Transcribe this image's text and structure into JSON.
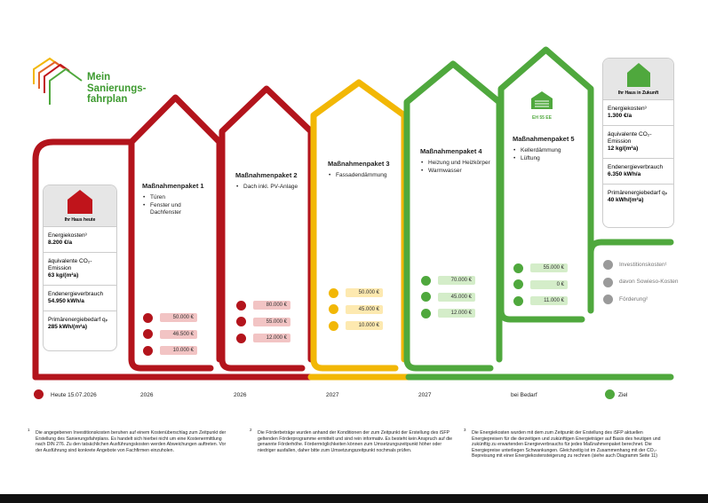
{
  "logo": {
    "lines": [
      "Mein",
      "Sanierungs-",
      "fahrplan"
    ]
  },
  "current_house": {
    "title": "Ihr Haus heute",
    "rows": [
      {
        "label": "Energiekosten³",
        "value": "8.200 €/a"
      },
      {
        "label": "äquivalente CO₂-Emission",
        "value": "63 kg/(m²a)"
      },
      {
        "label": "Endenergieverbrauch",
        "value": "54.950 kWh/a"
      },
      {
        "label": "Primärenergiebedarf qₚ",
        "value": "285 kWh/(m²a)"
      }
    ]
  },
  "future_house": {
    "title": "Ihr Haus in Zukunft",
    "rows": [
      {
        "label": "Energiekosten³",
        "value": "1.300 €/a"
      },
      {
        "label": "äquivalente CO₂-Emission",
        "value": "12 kg/(m²a)"
      },
      {
        "label": "Endenergieverbrauch",
        "value": "6.350 kWh/a"
      },
      {
        "label": "Primärenergiebedarf qₚ",
        "value": "40 kWh/(m²a)"
      }
    ]
  },
  "packages": [
    {
      "title": "Maßnahmenpaket 1",
      "items": [
        "Türen",
        "Fenster und Dachfenster"
      ],
      "costs": [
        "50.000 €",
        "46.500 €",
        "10.000 €"
      ],
      "year": "2026"
    },
    {
      "title": "Maßnahmenpaket 2",
      "items": [
        "Dach inkl. PV-Anlage"
      ],
      "costs": [
        "80.000 €",
        "55.000 €",
        "12.000 €"
      ],
      "year": "2026"
    },
    {
      "title": "Maßnahmenpaket 3",
      "items": [
        "Fassadendämmung"
      ],
      "costs": [
        "50.000 €",
        "45.000 €",
        "10.000 €"
      ],
      "year": "2027"
    },
    {
      "title": "Maßnahmenpaket 4",
      "items": [
        "Heizung und Heizkörper",
        "Warmwasser"
      ],
      "costs": [
        "70.000 €",
        "45.000 €",
        "12.000 €"
      ],
      "year": "2027"
    },
    {
      "title": "Maßnahmenpaket 5",
      "items": [
        "Kellerdämmung",
        "Lüftung"
      ],
      "costs": [
        "55.000 €",
        "0 €",
        "11.000 €"
      ],
      "year": "bei Bedarf"
    }
  ],
  "efficiency_label": "EH 55 EE",
  "legend": [
    "Investitionskosten¹",
    "davon Sowieso-Kosten",
    "Förderung²"
  ],
  "timeline": {
    "start": "Heute 15.07.2026",
    "end": "Ziel"
  },
  "footnotes": [
    {
      "number": "1",
      "text": "Die angegebenen Investitionskosten beruhen auf einem Kostenüberschlag zum Zeitpunkt der Erstellung des Sanierungsfahrplans. Es handelt sich hierbei nicht um eine Kostenermittlung nach DIN 276. Zu den tatsächlichen Ausführungskosten werden Abweichungen auftreten. Vor der Ausführung sind konkrete Angebote von Fachfirmen einzuholen."
    },
    {
      "number": "2",
      "text": "Die Förderbeträge wurden anhand der Konditionen der zum Zeitpunkt der Erstellung des iSFP geltenden Förderprogramme ermittelt und sind rein informativ. Es besteht kein Anspruch auf die genannte Förderhöhe. Fördermöglichkeiten können zum Umsetzungszeitpunkt höher oder niedriger ausfallen, daher bitte zum Umsetzungszeitpunkt nochmals prüfen."
    },
    {
      "number": "3",
      "text": "Die Energiekosten wurden mit dem zum Zeitpunkt der Erstellung des iSFP aktuellen Energiepreisen für die derzeitigen und zukünftigen Energieträger auf Basis des heutigen und zukünftig zu erwartenden Energieverbrauchs für jedes Maßnahmenpaket berechnet. Die Energiepreise unterliegen Schwankungen. Gleichzeitig ist im Zusammenhang mit der CO₂-Bepreisung mit einer Energiekostensteigerung zu rechnen (siehe auch Diagramm Seite 11)"
    }
  ]
}
